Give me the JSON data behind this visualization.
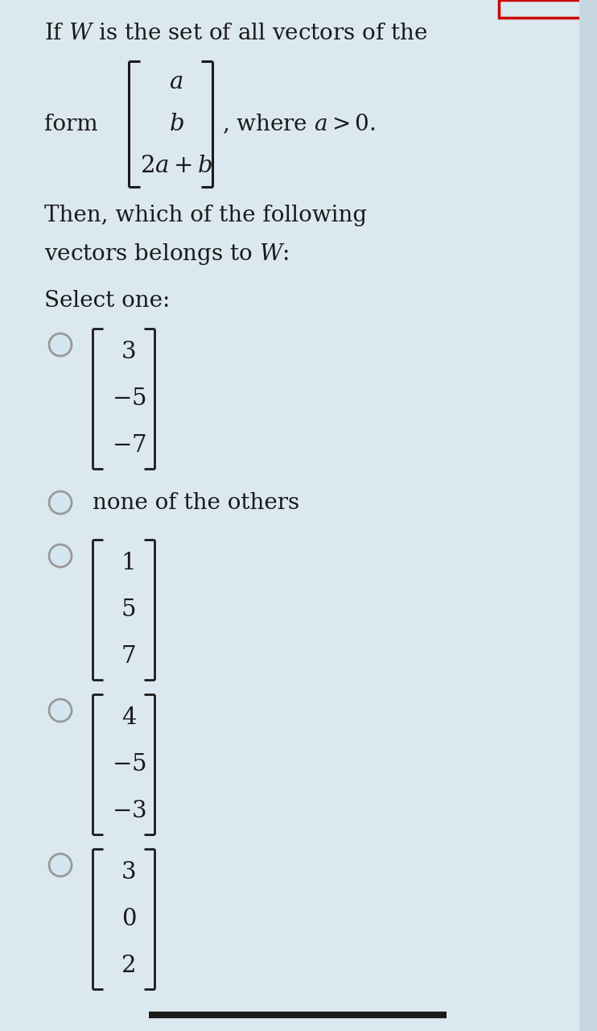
{
  "bg_color": "#dce8f0",
  "text_color": "#1a1a1a",
  "bracket_color": "#1a1a1a",
  "radio_edge_color": "#999999",
  "radio_face_color": "#d8e8f0",
  "bottom_bar_color": "#1a1a1a",
  "red_box_color": "#cc0000",
  "title_line": "If $W$ is the set of all vectors of the",
  "form_label": "form",
  "form_vector": [
    "$a$",
    "$b$",
    "$2a + b$"
  ],
  "where_text": ", where $a > 0$.",
  "q_line1": "Then, which of the following",
  "q_line2": "vectors belongs to $W$:",
  "select_label": "Select one:",
  "opt1": [
    "3",
    "$-5$",
    "$-7$"
  ],
  "opt2_text": "none of the others",
  "opt3": [
    "1",
    "5",
    "7"
  ],
  "opt4": [
    "4",
    "$-5$",
    "$-3$"
  ],
  "opt5": [
    "3",
    "0",
    "2"
  ],
  "fs_title": 20,
  "fs_body": 20,
  "fs_vec": 21,
  "fs_form_vec": 21
}
